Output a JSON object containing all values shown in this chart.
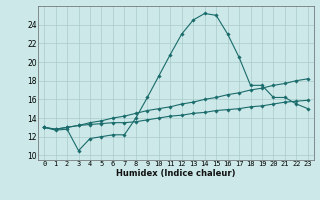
{
  "title": "",
  "xlabel": "Humidex (Indice chaleur)",
  "ylabel": "",
  "bg_color": "#cce8e8",
  "grid_color": "#aacccc",
  "line_color": "#1a6b6b",
  "xlim": [
    -0.5,
    23.5
  ],
  "ylim": [
    9.5,
    26.0
  ],
  "xticks": [
    0,
    1,
    2,
    3,
    4,
    5,
    6,
    7,
    8,
    9,
    10,
    11,
    12,
    13,
    14,
    15,
    16,
    17,
    18,
    19,
    20,
    21,
    22,
    23
  ],
  "yticks": [
    10,
    12,
    14,
    16,
    18,
    20,
    22,
    24
  ],
  "line1_x": [
    0,
    1,
    2,
    3,
    4,
    5,
    6,
    7,
    8,
    9,
    10,
    11,
    12,
    13,
    14,
    15,
    16,
    17,
    18,
    19,
    20,
    21,
    22,
    23
  ],
  "line1_y": [
    13.0,
    12.7,
    12.8,
    10.5,
    11.8,
    12.0,
    12.2,
    12.2,
    14.0,
    16.2,
    18.5,
    20.8,
    23.0,
    24.5,
    25.2,
    25.0,
    23.0,
    20.5,
    17.5,
    17.5,
    16.2,
    16.2,
    15.5,
    15.0
  ],
  "line2_x": [
    0,
    1,
    2,
    3,
    4,
    5,
    6,
    7,
    8,
    9,
    10,
    11,
    12,
    13,
    14,
    15,
    16,
    17,
    18,
    19,
    20,
    21,
    22,
    23
  ],
  "line2_y": [
    13.0,
    12.8,
    13.0,
    13.2,
    13.5,
    13.7,
    14.0,
    14.2,
    14.5,
    14.8,
    15.0,
    15.2,
    15.5,
    15.7,
    16.0,
    16.2,
    16.5,
    16.7,
    17.0,
    17.2,
    17.5,
    17.7,
    18.0,
    18.2
  ],
  "line3_x": [
    0,
    1,
    2,
    3,
    4,
    5,
    6,
    7,
    8,
    9,
    10,
    11,
    12,
    13,
    14,
    15,
    16,
    17,
    18,
    19,
    20,
    21,
    22,
    23
  ],
  "line3_y": [
    13.0,
    12.8,
    13.0,
    13.2,
    13.3,
    13.4,
    13.5,
    13.5,
    13.6,
    13.8,
    14.0,
    14.2,
    14.3,
    14.5,
    14.6,
    14.8,
    14.9,
    15.0,
    15.2,
    15.3,
    15.5,
    15.7,
    15.8,
    15.9
  ],
  "xlabel_fontsize": 6.0,
  "tick_fontsize": 5.0
}
